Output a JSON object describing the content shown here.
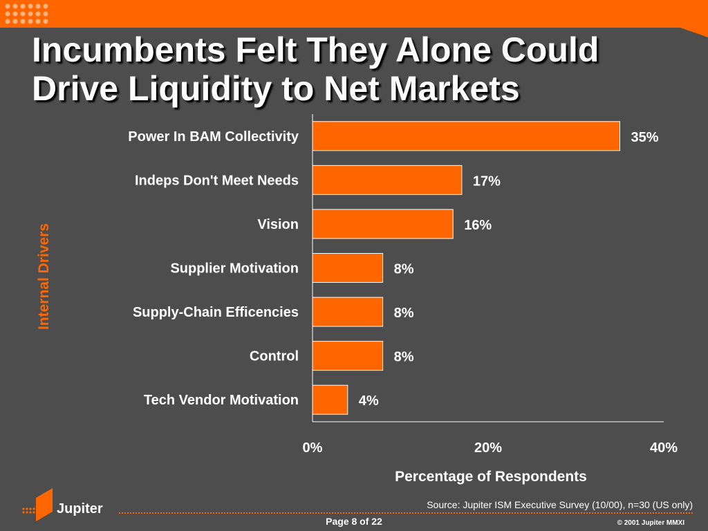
{
  "title_line1": "Incumbents Felt They Alone Could",
  "title_line2": "Drive Liquidity to Net Markets",
  "colors": {
    "background": "#4d4d4d",
    "accent": "#ff6600",
    "text": "#ffffff"
  },
  "chart_data": {
    "type": "bar",
    "orientation": "horizontal",
    "categories": [
      "Power In BAM Collectivity",
      "Indeps Don't Meet Needs",
      "Vision",
      "Supplier Motivation",
      "Supply-Chain Efficencies",
      "Control",
      "Tech Vendor Motivation"
    ],
    "values": [
      35,
      17,
      16,
      8,
      8,
      8,
      4
    ],
    "value_labels": [
      "35%",
      "17%",
      "16%",
      "8%",
      "8%",
      "8%",
      "4%"
    ],
    "xlim": [
      0,
      40
    ],
    "xticks": [
      0,
      20,
      40
    ],
    "xtick_labels": [
      "0%",
      "20%",
      "40%"
    ],
    "xlabel": "Percentage of Respondents",
    "ylabel": "Internal Drivers",
    "grid": false,
    "legend": "none"
  },
  "footer": {
    "logo_text": "Jupiter",
    "source": "Source: Jupiter ISM Executive Survey (10/00), n=30 (US only)",
    "page": "Page 8 of 22",
    "copyright": "© 2001 Jupiter MMXI"
  }
}
